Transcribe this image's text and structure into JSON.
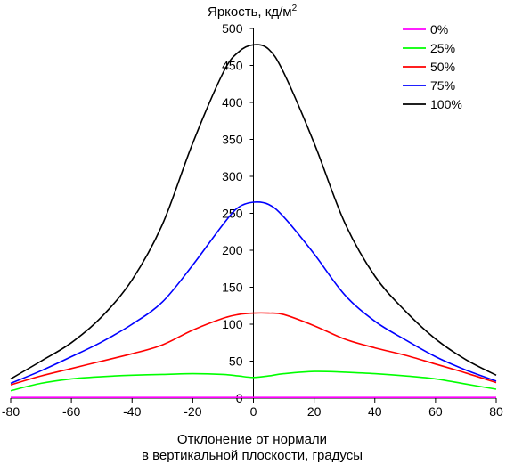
{
  "chart_data": {
    "type": "line",
    "ylabel_main": "Яркость, кд/м",
    "ylabel_sup": "2",
    "xlabel_line1": "Отклонение от нормали",
    "xlabel_line2": "в вертикальной плоскости, градусы",
    "xlim": [
      -80,
      80
    ],
    "ylim": [
      0,
      500
    ],
    "x_ticks": [
      -80,
      -60,
      -40,
      -20,
      0,
      20,
      40,
      60,
      80
    ],
    "y_ticks": [
      0,
      50,
      100,
      150,
      200,
      250,
      300,
      350,
      400,
      450,
      500
    ],
    "grid": false,
    "legend_position": "top-right",
    "x": [
      -80,
      -70,
      -60,
      -50,
      -40,
      -30,
      -20,
      -10,
      -5,
      0,
      5,
      10,
      20,
      30,
      40,
      50,
      60,
      70,
      80
    ],
    "series": [
      {
        "name": "0%",
        "color": "#ff00ff",
        "values": [
          1,
          1,
          1,
          1,
          1,
          1,
          1,
          1,
          1,
          1,
          1,
          1,
          1,
          1,
          1,
          1,
          1,
          1,
          1
        ]
      },
      {
        "name": "25%",
        "color": "#00ff00",
        "values": [
          10,
          20,
          26,
          29,
          31,
          32,
          33,
          32,
          30,
          28,
          30,
          33,
          36,
          35,
          33,
          30,
          26,
          19,
          12
        ]
      },
      {
        "name": "50%",
        "color": "#ff0000",
        "values": [
          18,
          30,
          40,
          50,
          60,
          72,
          92,
          108,
          113,
          115,
          115,
          113,
          98,
          80,
          68,
          58,
          46,
          34,
          21
        ]
      },
      {
        "name": "75%",
        "color": "#0000ff",
        "values": [
          20,
          37,
          56,
          76,
          100,
          130,
          180,
          235,
          258,
          265,
          262,
          245,
          195,
          140,
          104,
          79,
          56,
          38,
          23
        ]
      },
      {
        "name": "100%",
        "color": "#000000",
        "values": [
          26,
          50,
          75,
          110,
          160,
          235,
          345,
          440,
          468,
          478,
          472,
          440,
          345,
          238,
          165,
          118,
          80,
          52,
          31
        ]
      }
    ]
  }
}
